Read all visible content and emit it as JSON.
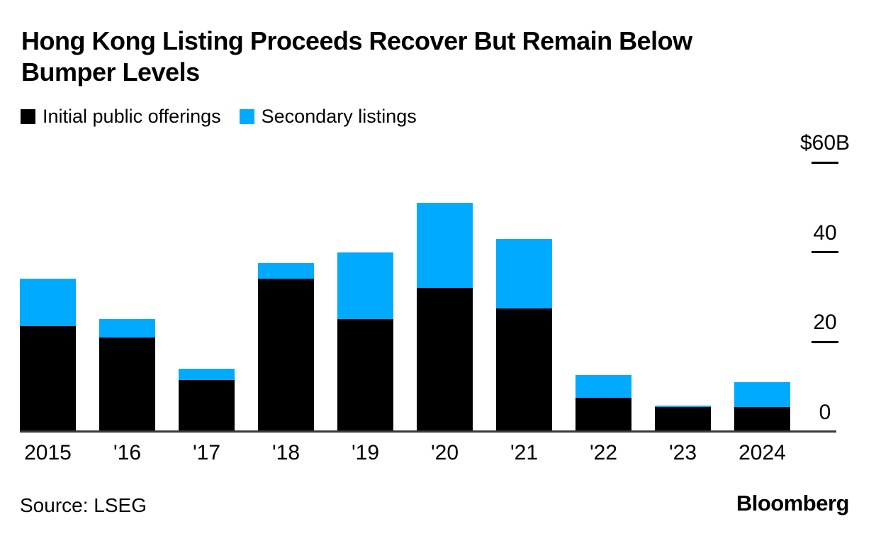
{
  "chart_data": {
    "type": "bar",
    "stacked": true,
    "title": "Hong Kong Listing Proceeds Recover But Remain Below Bumper Levels",
    "unit": "$B",
    "categories": [
      "2015",
      "'16",
      "'17",
      "'18",
      "'19",
      "'20",
      "'21",
      "'22",
      "'23",
      "2024"
    ],
    "series": [
      {
        "name": "Initial public offerings",
        "color": "#000000",
        "values": [
          23.5,
          21,
          11.5,
          34,
          25,
          32,
          27.5,
          7.5,
          5.5,
          5.5
        ]
      },
      {
        "name": "Secondary listings",
        "color": "#00ABFF",
        "values": [
          10.5,
          4,
          2.5,
          3.5,
          15,
          19,
          15.5,
          5,
          0.3,
          5.5
        ]
      }
    ],
    "y_axis": {
      "max": 60,
      "ylim": [
        0,
        60
      ],
      "ticks": [
        {
          "value": 60,
          "label": "$60B",
          "show_tick": true
        },
        {
          "value": 40,
          "label": "40",
          "show_tick": true
        },
        {
          "value": 20,
          "label": "20",
          "show_tick": true
        },
        {
          "value": 0,
          "label": "0",
          "show_tick": false
        }
      ]
    },
    "legend_position": "top-left",
    "grid": false
  },
  "footer": {
    "source": "Source: LSEG",
    "brand": "Bloomberg"
  }
}
